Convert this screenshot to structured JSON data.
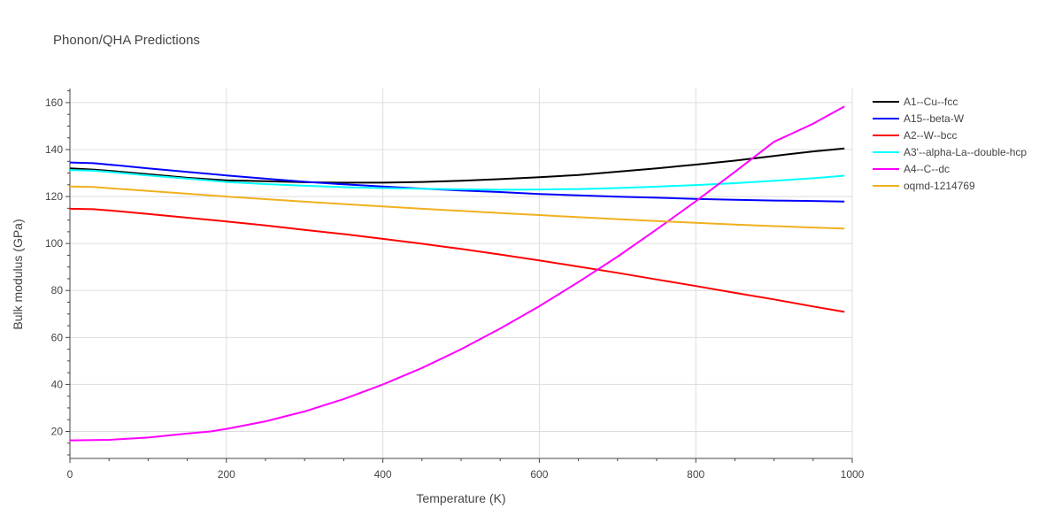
{
  "chart_data": {
    "type": "line",
    "title": "Phonon/QHA Predictions",
    "xlabel": "Temperature (K)",
    "ylabel": "Bulk modulus (GPa)",
    "xlim": [
      0,
      1000
    ],
    "ylim": [
      8.5,
      166
    ],
    "xticks": [
      0,
      200,
      400,
      600,
      800,
      1000
    ],
    "yticks": [
      20,
      40,
      60,
      80,
      100,
      120,
      140,
      160
    ],
    "grid": true,
    "legend_position": "right",
    "series": [
      {
        "name": "A1--Cu--fcc",
        "color": "#000000",
        "x": [
          0,
          30,
          60,
          100,
          150,
          200,
          250,
          300,
          350,
          400,
          450,
          500,
          550,
          600,
          650,
          700,
          750,
          800,
          850,
          900,
          950,
          990
        ],
        "y": [
          132,
          131.5,
          130.7,
          129.5,
          128,
          126.9,
          126.5,
          126.1,
          125.9,
          125.9,
          126.2,
          126.7,
          127.4,
          128.2,
          129.2,
          130.6,
          132,
          133.6,
          135.3,
          137.3,
          139.2,
          140.5
        ]
      },
      {
        "name": "A15--beta-W",
        "color": "#0000ff",
        "x": [
          0,
          30,
          60,
          100,
          150,
          200,
          250,
          300,
          350,
          400,
          450,
          500,
          550,
          600,
          650,
          700,
          750,
          800,
          850,
          900,
          950,
          990
        ],
        "y": [
          134.5,
          134.2,
          133.3,
          132,
          130.5,
          129,
          127.6,
          126.3,
          125.2,
          124.3,
          123.4,
          122.6,
          121.9,
          121.1,
          120.5,
          119.9,
          119.5,
          119,
          118.6,
          118.3,
          118.1,
          117.9
        ]
      },
      {
        "name": "A2--W--bcc",
        "color": "#ff0000",
        "x": [
          0,
          30,
          60,
          100,
          150,
          200,
          250,
          300,
          350,
          400,
          450,
          500,
          550,
          600,
          650,
          700,
          750,
          800,
          850,
          900,
          950,
          990
        ],
        "y": [
          114.8,
          114.6,
          113.8,
          112.6,
          111,
          109.4,
          107.7,
          105.8,
          104,
          102,
          99.9,
          97.7,
          95.3,
          92.8,
          90.2,
          87.5,
          84.7,
          81.9,
          79,
          76.2,
          73.2,
          70.9
        ]
      },
      {
        "name": "A3'--alpha-La--double-hcp",
        "color": "#00ffff",
        "x": [
          0,
          30,
          60,
          100,
          150,
          200,
          250,
          300,
          350,
          400,
          450,
          500,
          550,
          600,
          650,
          700,
          750,
          800,
          850,
          900,
          950,
          990
        ],
        "y": [
          131.3,
          131,
          130.2,
          129,
          127.6,
          126.2,
          125.3,
          124.6,
          124,
          123.6,
          123.3,
          123.1,
          122.9,
          123,
          123.2,
          123.6,
          124.2,
          124.9,
          125.7,
          126.7,
          127.8,
          128.9
        ]
      },
      {
        "name": "A4--C--dc",
        "color": "#ff00ff",
        "x": [
          0,
          50,
          100,
          150,
          180,
          200,
          250,
          300,
          350,
          400,
          450,
          500,
          550,
          600,
          650,
          700,
          750,
          800,
          850,
          900,
          950,
          990
        ],
        "y": [
          16.2,
          16.4,
          17.4,
          19.1,
          20,
          21.1,
          24.3,
          28.5,
          33.8,
          40,
          47,
          55,
          63.8,
          73.3,
          83.6,
          94.4,
          106,
          118,
          130.5,
          143.3,
          151,
          158.4
        ]
      },
      {
        "name": "oqmd-1214769",
        "color": "#f0b020",
        "x": [
          0,
          30,
          60,
          100,
          150,
          200,
          250,
          300,
          350,
          400,
          450,
          500,
          550,
          600,
          650,
          700,
          750,
          800,
          850,
          900,
          950,
          990
        ],
        "y": [
          124.3,
          124.1,
          123.3,
          122.4,
          121.2,
          120,
          118.9,
          117.8,
          116.8,
          115.8,
          114.8,
          113.9,
          113,
          112.1,
          111.2,
          110.4,
          109.6,
          108.8,
          108.1,
          107.4,
          106.8,
          106.4
        ]
      }
    ]
  }
}
